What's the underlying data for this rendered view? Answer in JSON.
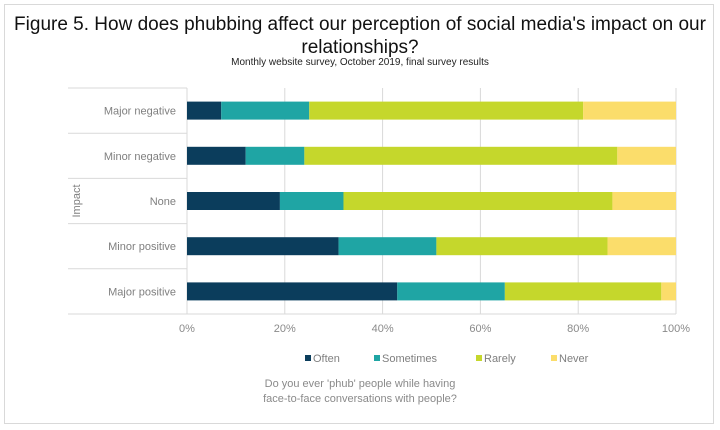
{
  "chart_data": {
    "type": "bar",
    "orientation": "horizontal",
    "stacked": true,
    "title": "Figure 5. How does phubbing affect our perception of social media's impact on our relationships?",
    "subtitle": "Monthly website survey, October 2019, final survey results",
    "ylabel": "Impact",
    "xlim": [
      0,
      100
    ],
    "x_ticks": [
      "0%",
      "20%",
      "40%",
      "60%",
      "80%",
      "100%"
    ],
    "categories": [
      "Major negative",
      "Minor negative",
      "None",
      "Minor positive",
      "Major positive"
    ],
    "series": [
      {
        "name": "Often",
        "color": "#0b3d5c",
        "values": [
          7,
          12,
          19,
          31,
          43
        ]
      },
      {
        "name": "Sometimes",
        "color": "#1fa5a4",
        "values": [
          18,
          12,
          13,
          20,
          22
        ]
      },
      {
        "name": "Rarely",
        "color": "#c5d72c",
        "values": [
          56,
          64,
          55,
          35,
          32
        ]
      },
      {
        "name": "Never",
        "color": "#fbdd6b",
        "values": [
          19,
          12,
          13,
          14,
          3
        ]
      }
    ],
    "legend_position": "bottom",
    "legend_title_lines": [
      "Do you ever 'phub' people while having",
      "face-to-face conversations with people?"
    ],
    "grid": "vertical"
  }
}
